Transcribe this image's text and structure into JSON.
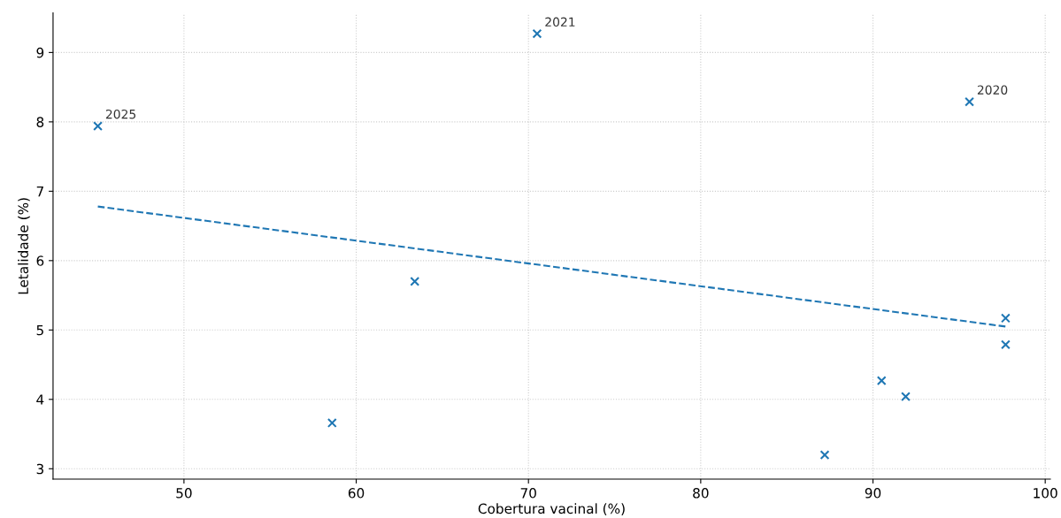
{
  "chart_data": {
    "type": "scatter",
    "xlabel": "Cobertura vacinal (%)",
    "ylabel": "Letalidade (%)",
    "series": [
      {
        "color": "#1f77b4",
        "marker": "cross",
        "x": [
          45.0,
          70.5,
          95.6,
          63.4,
          58.6,
          87.2,
          90.5,
          91.9,
          97.7,
          97.7
        ],
        "values": [
          7.94,
          9.27,
          8.29,
          5.7,
          3.66,
          3.2,
          4.27,
          4.04,
          5.17,
          4.79
        ]
      },
      {
        "type": "line",
        "color": "#1f77b4",
        "line_style": "dashed",
        "x": [
          45.0,
          97.7
        ],
        "values": [
          6.78,
          5.05
        ]
      }
    ],
    "annotations": [
      {
        "text": "2025",
        "x": 45.0,
        "y": 7.94
      },
      {
        "text": "2021",
        "x": 70.5,
        "y": 9.27
      },
      {
        "text": "2020",
        "x": 95.6,
        "y": 8.29
      }
    ],
    "xlim": [
      42.4,
      100.3
    ],
    "xticks": [
      50,
      60,
      70,
      80,
      90,
      100
    ],
    "ylim": [
      2.85,
      9.57
    ],
    "yticks": [
      3,
      4,
      5,
      6,
      7,
      8,
      9
    ],
    "grid": true
  }
}
